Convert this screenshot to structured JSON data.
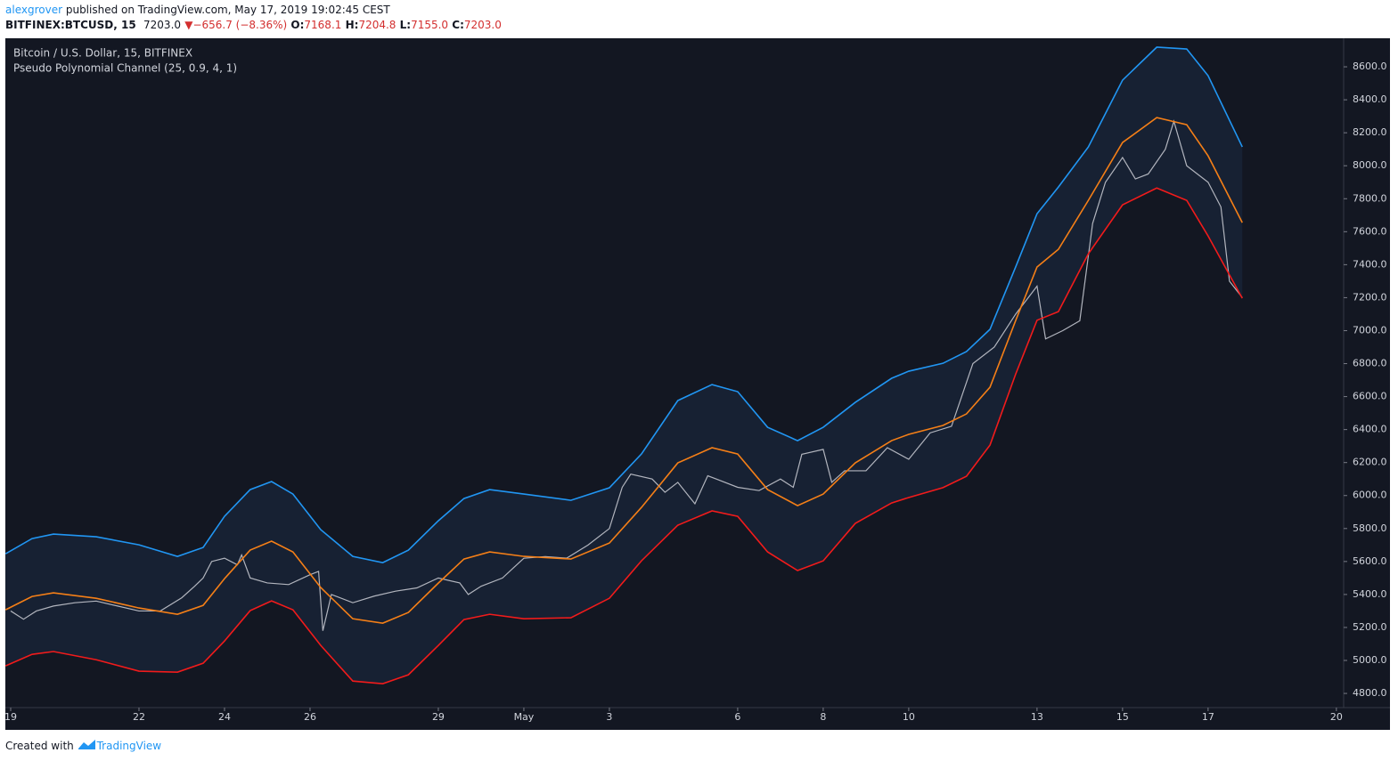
{
  "header": {
    "author": "alexgrover",
    "published": "published on TradingView.com, May 17, 2019 19:02:45 CEST",
    "symbol": "BITFINEX:BTCUSD, 15",
    "last": "7203.0",
    "arrow": "▼",
    "change": "−656.7 (−8.36%)",
    "o_label": "O:",
    "o_value": "7168.1",
    "h_label": "H:",
    "h_value": "7204.8",
    "l_label": "L:",
    "l_value": "7155.0",
    "c_label": "C:",
    "c_value": "7203.0"
  },
  "chart_data": {
    "type": "line",
    "title": "Bitcoin / U.S. Dollar, 15, BITFINEX",
    "subtitle": "Pseudo Polynomial Channel (25, 0.9, 4, 1)",
    "xlim": [
      -0.125,
      31.17
    ],
    "ylim": [
      4714,
      8773
    ],
    "xticks": [
      {
        "value": 0,
        "label": "19"
      },
      {
        "value": 3,
        "label": "22"
      },
      {
        "value": 5,
        "label": "24"
      },
      {
        "value": 7,
        "label": "26"
      },
      {
        "value": 10,
        "label": "29"
      },
      {
        "value": 12,
        "label": "May"
      },
      {
        "value": 14,
        "label": "3"
      },
      {
        "value": 17,
        "label": "6"
      },
      {
        "value": 19,
        "label": "8"
      },
      {
        "value": 21,
        "label": "10"
      },
      {
        "value": 24,
        "label": "13"
      },
      {
        "value": 26,
        "label": "15"
      },
      {
        "value": 28,
        "label": "17"
      },
      {
        "value": 31,
        "label": "20"
      }
    ],
    "yticks": [
      {
        "value": 4800,
        "label": "4800.0"
      },
      {
        "value": 5000,
        "label": "5000.0"
      },
      {
        "value": 5200,
        "label": "5200.0"
      },
      {
        "value": 5400,
        "label": "5400.0"
      },
      {
        "value": 5600,
        "label": "5600.0"
      },
      {
        "value": 5800,
        "label": "5800.0"
      },
      {
        "value": 6000,
        "label": "6000.0"
      },
      {
        "value": 6200,
        "label": "6200.0"
      },
      {
        "value": 6400,
        "label": "6400.0"
      },
      {
        "value": 6600,
        "label": "6600.0"
      },
      {
        "value": 6800,
        "label": "6800.0"
      },
      {
        "value": 7000,
        "label": "7000.0"
      },
      {
        "value": 7200,
        "label": "7200.0"
      },
      {
        "value": 7400,
        "label": "7400.0"
      },
      {
        "value": 7600,
        "label": "7600.0"
      },
      {
        "value": 7800,
        "label": "7800.0"
      },
      {
        "value": 8000,
        "label": "8000.0"
      },
      {
        "value": 8200,
        "label": "8200.0"
      },
      {
        "value": 8400,
        "label": "8400.0"
      },
      {
        "value": 8600,
        "label": "8600.0"
      }
    ],
    "grid": false,
    "fill_color": "#172133",
    "series": [
      {
        "color": "#b2b5be",
        "x": [
          0,
          0.3,
          0.6,
          1,
          1.5,
          2,
          2.5,
          3,
          3.5,
          4,
          4.3,
          4.5,
          4.7,
          5,
          5.3,
          5.4,
          5.6,
          6,
          6.5,
          7,
          7.2,
          7.3,
          7.5,
          8,
          8.5,
          9,
          9.5,
          10,
          10.5,
          10.7,
          11,
          11.5,
          12,
          12.5,
          13,
          13.5,
          14,
          14.3,
          14.5,
          15,
          15.3,
          15.6,
          16,
          16.3,
          16.5,
          17,
          17.5,
          18,
          18.3,
          18.5,
          19,
          19.2,
          19.5,
          20,
          20.5,
          21,
          21.5,
          22,
          22.5,
          23,
          23.5,
          24,
          24.2,
          24.6,
          25,
          25.3,
          25.6,
          26,
          26.3,
          26.6,
          27,
          27.2,
          27.5,
          28,
          28.3,
          28.5,
          28.8
        ],
        "values": [
          5300,
          5250,
          5300,
          5330,
          5350,
          5360,
          5330,
          5300,
          5300,
          5380,
          5450,
          5500,
          5600,
          5620,
          5580,
          5640,
          5500,
          5470,
          5460,
          5520,
          5540,
          5180,
          5400,
          5350,
          5390,
          5420,
          5440,
          5500,
          5470,
          5400,
          5450,
          5500,
          5620,
          5630,
          5620,
          5700,
          5800,
          6050,
          6130,
          6100,
          6020,
          6080,
          5950,
          6120,
          6100,
          6050,
          6030,
          6100,
          6050,
          6250,
          6280,
          6080,
          6150,
          6150,
          6290,
          6220,
          6380,
          6420,
          6800,
          6900,
          7100,
          7270,
          6950,
          7000,
          7060,
          7650,
          7900,
          8050,
          7920,
          7950,
          8100,
          8270,
          8000,
          7900,
          7750,
          7300,
          7200
        ]
      },
      {
        "color": "#2196f3",
        "x": [
          -0.12,
          0.5,
          1,
          2,
          3,
          3.9,
          4.5,
          5,
          5.6,
          6.1,
          6.6,
          7.25,
          8,
          8.7,
          9.3,
          10,
          10.6,
          11.2,
          12,
          13.1,
          14,
          14.75,
          15.6,
          16.4,
          17,
          17.7,
          18.4,
          19,
          19.75,
          20.6,
          21,
          21.8,
          22.35,
          22.9,
          23.5,
          24,
          24.5,
          25.2,
          26,
          26.8,
          27.5,
          28,
          28.8
        ],
        "values": [
          5647,
          5739,
          5766,
          5750,
          5701,
          5631,
          5685,
          5874,
          6036,
          6085,
          6009,
          5793,
          5631,
          5593,
          5669,
          5847,
          5982,
          6036,
          6009,
          5971,
          6047,
          6252,
          6576,
          6673,
          6630,
          6414,
          6333,
          6414,
          6565,
          6711,
          6754,
          6802,
          6873,
          7008,
          7386,
          7709,
          7871,
          8114,
          8519,
          8719,
          8708,
          8546,
          8114
        ]
      },
      {
        "color": "#f57f17",
        "x": [
          -0.12,
          0.5,
          1,
          2,
          3,
          3.9,
          4.5,
          5,
          5.6,
          6.1,
          6.6,
          7.25,
          8,
          8.7,
          9.3,
          10,
          10.6,
          11.2,
          12,
          13.1,
          14,
          14.75,
          15.6,
          16.4,
          17,
          17.7,
          18.4,
          19,
          19.75,
          20.6,
          21,
          21.8,
          22.35,
          22.9,
          23.5,
          24,
          24.5,
          25.2,
          26,
          26.8,
          27.5,
          28,
          28.8
        ],
        "values": [
          5307,
          5388,
          5410,
          5377,
          5318,
          5280,
          5334,
          5496,
          5669,
          5723,
          5658,
          5442,
          5253,
          5226,
          5291,
          5469,
          5615,
          5658,
          5631,
          5615,
          5712,
          5928,
          6198,
          6290,
          6252,
          6036,
          5939,
          6009,
          6198,
          6333,
          6371,
          6425,
          6495,
          6657,
          7061,
          7386,
          7493,
          7790,
          8141,
          8292,
          8249,
          8060,
          7655
        ]
      },
      {
        "color": "#f21b1b",
        "x": [
          -0.12,
          0.5,
          1,
          2,
          3,
          3.9,
          4.5,
          5,
          5.6,
          6.1,
          6.6,
          7.25,
          8,
          8.7,
          9.3,
          10,
          10.6,
          11.2,
          12,
          13.1,
          14,
          14.75,
          15.6,
          16.4,
          17,
          17.7,
          18.4,
          19,
          19.75,
          20.6,
          21,
          21.8,
          22.35,
          22.9,
          23.5,
          24,
          24.5,
          25.2,
          26,
          26.8,
          27.5,
          28,
          28.8
        ],
        "values": [
          4967,
          5037,
          5054,
          5004,
          4935,
          4929,
          4983,
          5118,
          5302,
          5361,
          5307,
          5091,
          4875,
          4859,
          4913,
          5091,
          5248,
          5280,
          5253,
          5259,
          5377,
          5604,
          5820,
          5907,
          5874,
          5658,
          5545,
          5604,
          5831,
          5955,
          5988,
          6048,
          6117,
          6306,
          6736,
          7063,
          7115,
          7466,
          7763,
          7865,
          7790,
          7574,
          7196
        ]
      }
    ]
  },
  "footer": {
    "text": "Created with",
    "brand": "TradingView"
  }
}
